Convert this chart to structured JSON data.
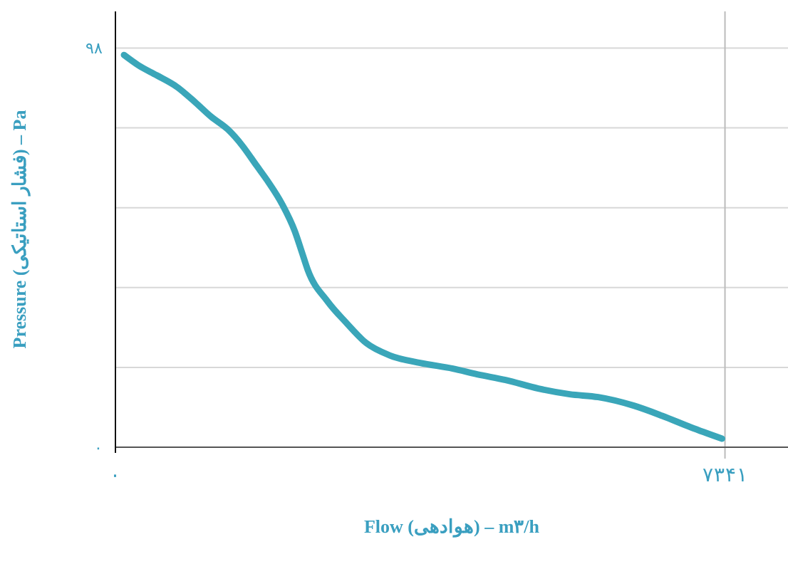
{
  "chart_data": {
    "type": "line",
    "xlabel": "Flow (هوادهی) – m۳/h",
    "ylabel": "Pressure (فشار استاتیکی) – Pa",
    "xlim": [
      0,
      8100
    ],
    "ylim": [
      0,
      107
    ],
    "xticks": [
      {
        "value": 0,
        "label": "۰"
      },
      {
        "value": 7341,
        "label": "۷۳۴۱"
      }
    ],
    "yticks": [
      {
        "value": 0,
        "label": "۰"
      },
      {
        "value": 19.6,
        "label": null
      },
      {
        "value": 39.2,
        "label": null
      },
      {
        "value": 58.8,
        "label": null
      },
      {
        "value": 78.4,
        "label": null
      },
      {
        "value": 98,
        "label": "۹۸"
      }
    ],
    "grid": "y",
    "ref_lines": [
      {
        "axis": "x",
        "value": 7341,
        "color": "#bbbbbb"
      }
    ],
    "marker": "none",
    "line_style": "solid",
    "series": [
      {
        "color": "#3aa6b9",
        "x": [
          103,
          274,
          498,
          738,
          961,
          1149,
          1355,
          1526,
          1698,
          1835,
          2007,
          2161,
          2247,
          2315,
          2555,
          2778,
          3019,
          3310,
          3670,
          4064,
          4356,
          4699,
          5093,
          5471,
          5814,
          6243,
          6586,
          6929,
          7306
        ],
        "values": [
          96.3,
          93.8,
          91.3,
          88.5,
          84.7,
          81.2,
          78.0,
          74.1,
          69.2,
          65.3,
          59.7,
          53.0,
          47.8,
          43.6,
          35.8,
          30.6,
          25.6,
          22.5,
          20.7,
          19.3,
          17.9,
          16.5,
          14.4,
          13.0,
          12.3,
          10.2,
          7.7,
          4.9,
          2.1
        ]
      }
    ]
  }
}
